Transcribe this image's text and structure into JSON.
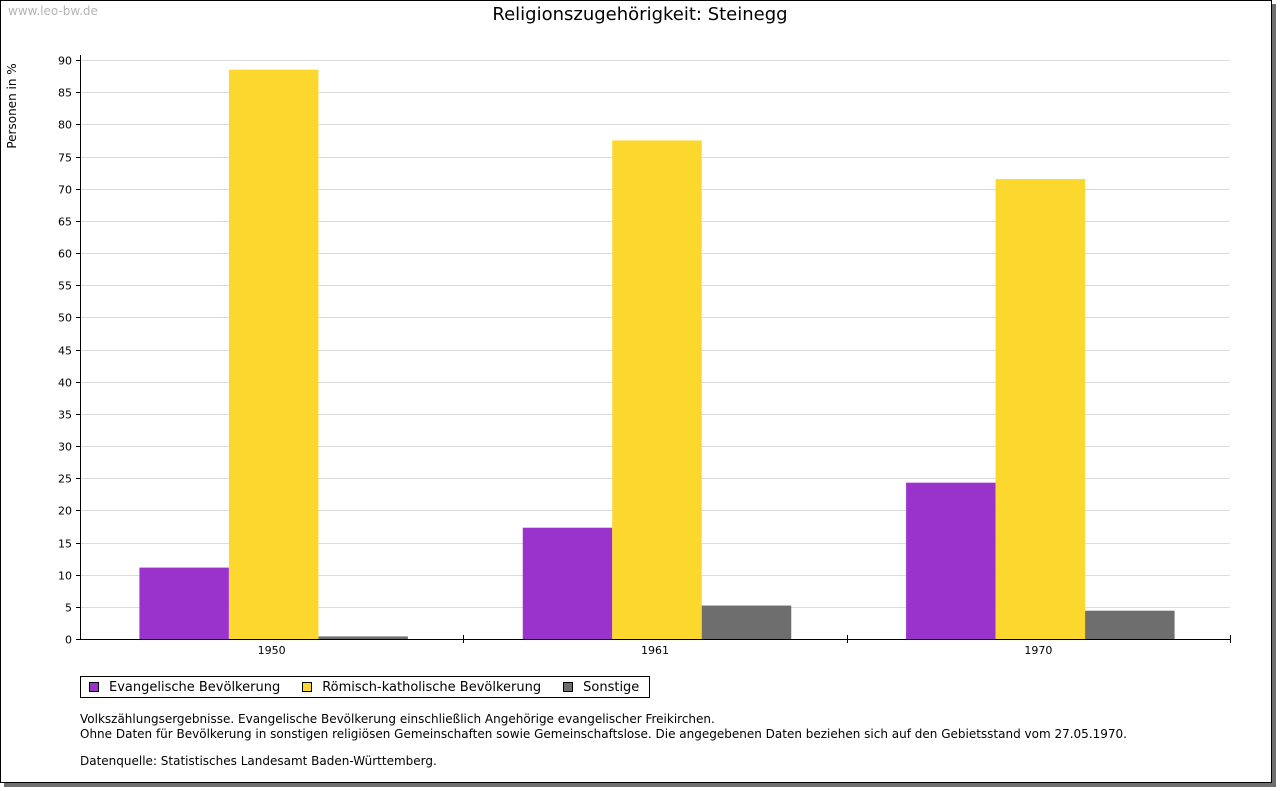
{
  "watermark": "www.leo-bw.de",
  "colors": {
    "evangelisch": "#9933cc",
    "katholisch": "#fcd72d",
    "sonstige": "#6e6e6e"
  },
  "chart_data": {
    "type": "bar",
    "title": "Religionszugehörigkeit: Steinegg",
    "xlabel": "",
    "ylabel": "Personen in %",
    "ylim": [
      0,
      90
    ],
    "ytick_step": 5,
    "grid": true,
    "legend_position": "bottom-left",
    "categories": [
      "1950",
      "1961",
      "1970"
    ],
    "series": [
      {
        "name": "Evangelische Bevölkerung",
        "color_key": "evangelisch",
        "values": [
          11.1,
          17.3,
          24.3
        ]
      },
      {
        "name": "Römisch-katholische Bevölkerung",
        "color_key": "katholisch",
        "values": [
          88.5,
          77.5,
          71.5
        ]
      },
      {
        "name": "Sonstige",
        "color_key": "sonstige",
        "values": [
          0.4,
          5.2,
          4.4
        ]
      }
    ]
  },
  "notes": {
    "line1": "Volkszählungsergebnisse. Evangelische Bevölkerung einschließlich Angehörige evangelischer Freikirchen.",
    "line2": "Ohne Daten für Bevölkerung in sonstigen religiösen Gemeinschaften sowie Gemeinschaftslose. Die angegebenen Daten beziehen sich auf den Gebietsstand vom 27.05.1970.",
    "source": "Datenquelle: Statistisches Landesamt Baden-Württemberg."
  }
}
